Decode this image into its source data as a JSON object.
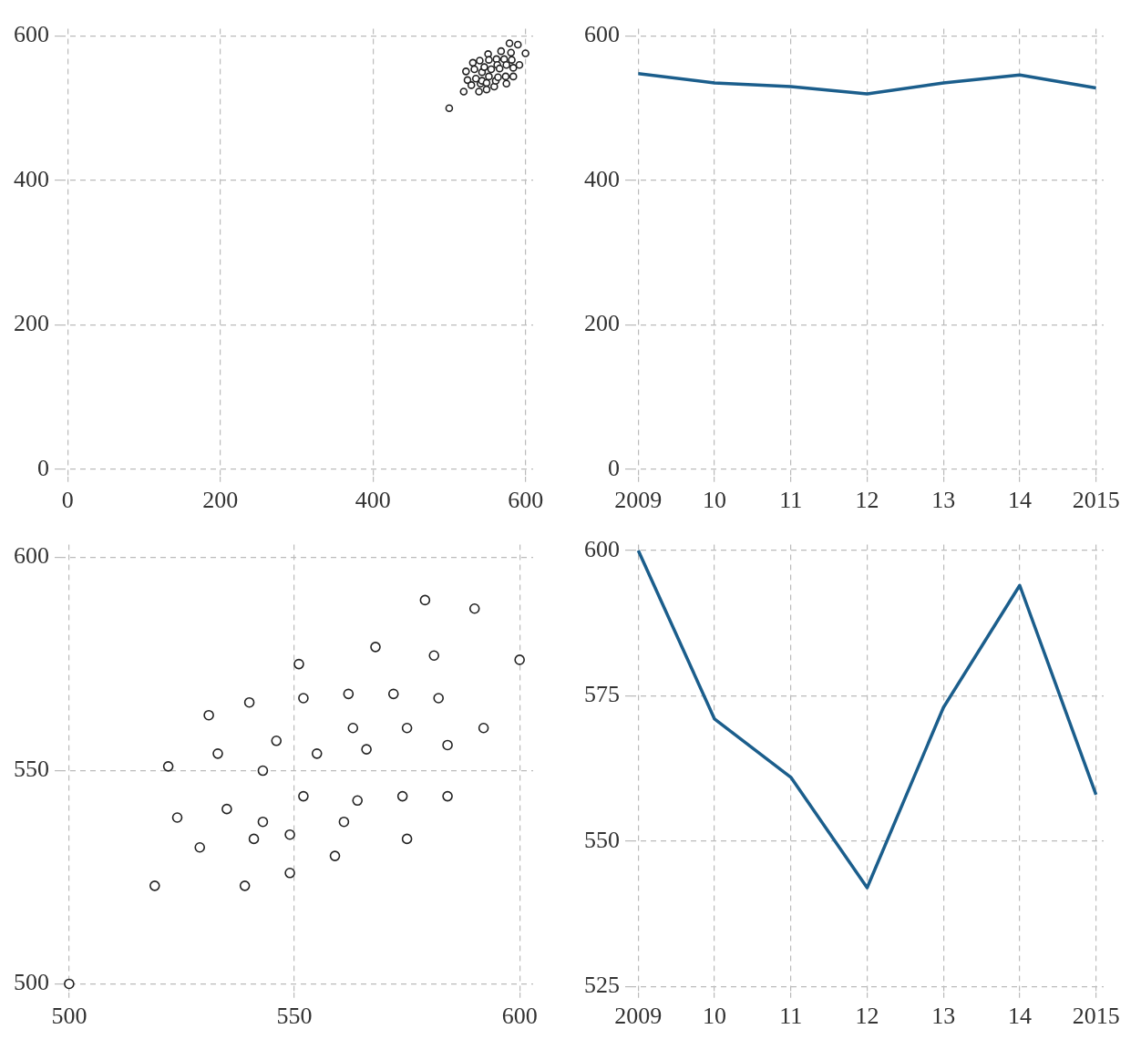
{
  "chart_data": [
    {
      "type": "scatter",
      "x": [
        500,
        519,
        522,
        524,
        529,
        531,
        533,
        535,
        539,
        540,
        541,
        543,
        543,
        546,
        549,
        549,
        551,
        552,
        552,
        555,
        559,
        561,
        562,
        563,
        564,
        566,
        568,
        572,
        574,
        575,
        575,
        579,
        581,
        582,
        584,
        584,
        590,
        592,
        600
      ],
      "series": [
        {
          "color": "#222222",
          "values": [
            500,
            523,
            551,
            539,
            532,
            563,
            554,
            541,
            523,
            566,
            534,
            538,
            550,
            557,
            535,
            526,
            575,
            567,
            544,
            554,
            530,
            538,
            568,
            560,
            543,
            555,
            579,
            568,
            544,
            560,
            534,
            590,
            577,
            567,
            544,
            556,
            588,
            560,
            576
          ]
        }
      ],
      "xlim": [
        -10,
        610
      ],
      "ylim": [
        -10,
        610
      ],
      "xticks": [
        0,
        200,
        400,
        600
      ],
      "yticks": [
        0,
        200,
        400,
        600
      ],
      "grid": true,
      "marker": "circle"
    },
    {
      "type": "line",
      "x": [
        2009,
        2010,
        2011,
        2012,
        2013,
        2014,
        2015
      ],
      "series": [
        {
          "color": "#1b5e8c",
          "values": [
            548,
            535,
            530,
            520,
            535,
            546,
            528
          ]
        }
      ],
      "xlim": [
        2008.9,
        2015.1
      ],
      "ylim": [
        -10,
        610
      ],
      "xticks": [
        {
          "value": 2009,
          "label": "2009"
        },
        {
          "value": 2010,
          "label": "10"
        },
        {
          "value": 2011,
          "label": "11"
        },
        {
          "value": 2012,
          "label": "12"
        },
        {
          "value": 2013,
          "label": "13"
        },
        {
          "value": 2014,
          "label": "14"
        },
        {
          "value": 2015,
          "label": "2015"
        }
      ],
      "yticks": [
        0,
        200,
        400,
        600
      ],
      "grid": true,
      "marker": "none"
    },
    {
      "type": "scatter",
      "x": [
        500,
        519,
        522,
        524,
        529,
        531,
        533,
        535,
        539,
        540,
        541,
        543,
        543,
        546,
        549,
        549,
        551,
        552,
        552,
        555,
        559,
        561,
        562,
        563,
        564,
        566,
        568,
        572,
        574,
        575,
        575,
        579,
        581,
        582,
        584,
        584,
        590,
        592,
        600
      ],
      "series": [
        {
          "color": "#222222",
          "values": [
            500,
            523,
            551,
            539,
            532,
            563,
            554,
            541,
            523,
            566,
            534,
            538,
            550,
            557,
            535,
            526,
            575,
            567,
            544,
            554,
            530,
            538,
            568,
            560,
            543,
            555,
            579,
            568,
            544,
            560,
            534,
            590,
            577,
            567,
            544,
            556,
            588,
            560,
            576
          ]
        }
      ],
      "xlim": [
        498,
        603
      ],
      "ylim": [
        498,
        603
      ],
      "xticks": [
        500,
        550,
        600
      ],
      "yticks": [
        500,
        550,
        600
      ],
      "grid": true,
      "marker": "circle"
    },
    {
      "type": "line",
      "x": [
        2009,
        2010,
        2011,
        2012,
        2013,
        2014,
        2015
      ],
      "series": [
        {
          "color": "#1b5e8c",
          "values": [
            600,
            571,
            561,
            542,
            573,
            594,
            558
          ]
        }
      ],
      "xlim": [
        2008.9,
        2015.1
      ],
      "ylim": [
        524,
        601
      ],
      "xticks": [
        {
          "value": 2009,
          "label": "2009"
        },
        {
          "value": 2010,
          "label": "10"
        },
        {
          "value": 2011,
          "label": "11"
        },
        {
          "value": 2012,
          "label": "12"
        },
        {
          "value": 2013,
          "label": "13"
        },
        {
          "value": 2014,
          "label": "14"
        },
        {
          "value": 2015,
          "label": "2015"
        }
      ],
      "yticks": [
        525,
        550,
        575,
        600
      ],
      "grid": true,
      "marker": "none"
    }
  ]
}
